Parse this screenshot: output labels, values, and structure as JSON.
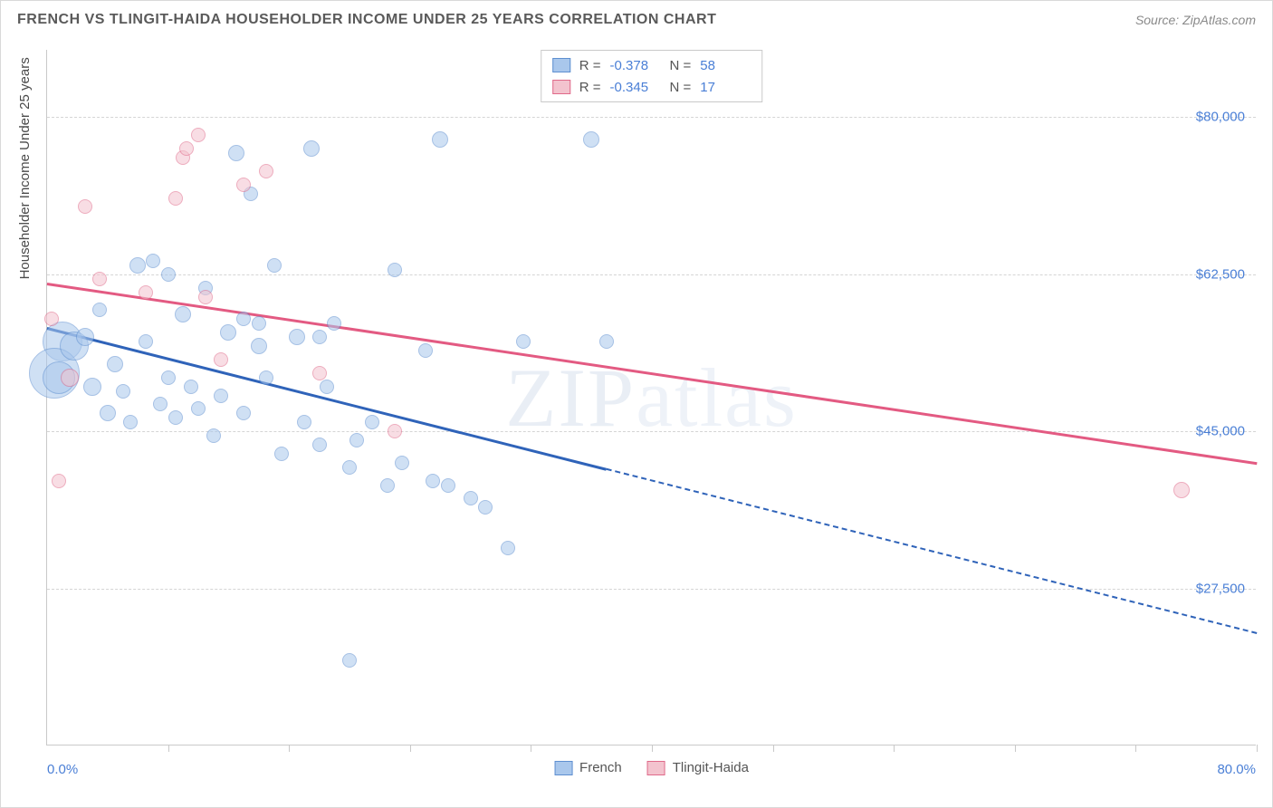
{
  "title": "FRENCH VS TLINGIT-HAIDA HOUSEHOLDER INCOME UNDER 25 YEARS CORRELATION CHART",
  "source": "Source: ZipAtlas.com",
  "ylabel": "Householder Income Under 25 years",
  "watermark": "ZIPatlas",
  "chart": {
    "type": "scatter",
    "background_color": "#ffffff",
    "grid_color": "#d5d5d5",
    "axis_color": "#c9c9c9",
    "text_color": "#4a4a4a",
    "value_color": "#4a7fd6",
    "title_fontsize": 16,
    "label_fontsize": 15,
    "xlim": [
      0,
      80
    ],
    "ylim": [
      10000,
      87500
    ],
    "yticks": [
      27500,
      45000,
      62500,
      80000
    ],
    "ytick_labels": [
      "$27,500",
      "$45,000",
      "$62,500",
      "$80,000"
    ],
    "xaxis_min_label": "0.0%",
    "xaxis_max_label": "80.0%",
    "xtick_positions": [
      8,
      16,
      24,
      32,
      40,
      48,
      56,
      64,
      72,
      80
    ],
    "series": [
      {
        "name": "French",
        "fill": "#a9c7ec",
        "stroke": "#5e8fd0",
        "fill_opacity": 0.55,
        "R": "-0.378",
        "N": "58",
        "trend": {
          "color": "#2f63b9",
          "x1": 0,
          "y1": 56500,
          "x2": 80,
          "y2": 22500,
          "solid_until_x": 37
        },
        "points": [
          {
            "x": 1.0,
            "y": 55000,
            "r": 22
          },
          {
            "x": 0.5,
            "y": 51500,
            "r": 28
          },
          {
            "x": 0.8,
            "y": 51000,
            "r": 18
          },
          {
            "x": 1.8,
            "y": 54500,
            "r": 16
          },
          {
            "x": 2.5,
            "y": 55500,
            "r": 10
          },
          {
            "x": 3.0,
            "y": 50000,
            "r": 10
          },
          {
            "x": 3.5,
            "y": 58500,
            "r": 8
          },
          {
            "x": 4.0,
            "y": 47000,
            "r": 9
          },
          {
            "x": 4.5,
            "y": 52500,
            "r": 9
          },
          {
            "x": 5.0,
            "y": 49500,
            "r": 8
          },
          {
            "x": 5.5,
            "y": 46000,
            "r": 8
          },
          {
            "x": 6.0,
            "y": 63500,
            "r": 9
          },
          {
            "x": 6.5,
            "y": 55000,
            "r": 8
          },
          {
            "x": 7.0,
            "y": 64000,
            "r": 8
          },
          {
            "x": 7.5,
            "y": 48000,
            "r": 8
          },
          {
            "x": 8.0,
            "y": 51000,
            "r": 8
          },
          {
            "x": 8.0,
            "y": 62500,
            "r": 8
          },
          {
            "x": 8.5,
            "y": 46500,
            "r": 8
          },
          {
            "x": 9.0,
            "y": 58000,
            "r": 9
          },
          {
            "x": 9.5,
            "y": 50000,
            "r": 8
          },
          {
            "x": 10.0,
            "y": 47500,
            "r": 8
          },
          {
            "x": 10.5,
            "y": 61000,
            "r": 8
          },
          {
            "x": 11.0,
            "y": 44500,
            "r": 8
          },
          {
            "x": 11.5,
            "y": 49000,
            "r": 8
          },
          {
            "x": 12.0,
            "y": 56000,
            "r": 9
          },
          {
            "x": 12.5,
            "y": 76000,
            "r": 9
          },
          {
            "x": 13.0,
            "y": 47000,
            "r": 8
          },
          {
            "x": 13.0,
            "y": 57500,
            "r": 8
          },
          {
            "x": 13.5,
            "y": 71500,
            "r": 8
          },
          {
            "x": 14.0,
            "y": 54500,
            "r": 9
          },
          {
            "x": 14.0,
            "y": 57000,
            "r": 8
          },
          {
            "x": 14.5,
            "y": 51000,
            "r": 8
          },
          {
            "x": 15.0,
            "y": 63500,
            "r": 8
          },
          {
            "x": 15.5,
            "y": 42500,
            "r": 8
          },
          {
            "x": 16.5,
            "y": 55500,
            "r": 9
          },
          {
            "x": 17.0,
            "y": 46000,
            "r": 8
          },
          {
            "x": 17.5,
            "y": 76500,
            "r": 9
          },
          {
            "x": 18.0,
            "y": 43500,
            "r": 8
          },
          {
            "x": 18.0,
            "y": 55500,
            "r": 8
          },
          {
            "x": 18.5,
            "y": 50000,
            "r": 8
          },
          {
            "x": 19.0,
            "y": 57000,
            "r": 8
          },
          {
            "x": 20.0,
            "y": 19500,
            "r": 8
          },
          {
            "x": 20.0,
            "y": 41000,
            "r": 8
          },
          {
            "x": 20.5,
            "y": 44000,
            "r": 8
          },
          {
            "x": 21.5,
            "y": 46000,
            "r": 8
          },
          {
            "x": 22.5,
            "y": 39000,
            "r": 8
          },
          {
            "x": 23.0,
            "y": 63000,
            "r": 8
          },
          {
            "x": 23.5,
            "y": 41500,
            "r": 8
          },
          {
            "x": 25.0,
            "y": 54000,
            "r": 8
          },
          {
            "x": 25.5,
            "y": 39500,
            "r": 8
          },
          {
            "x": 26.0,
            "y": 77500,
            "r": 9
          },
          {
            "x": 26.5,
            "y": 39000,
            "r": 8
          },
          {
            "x": 28.0,
            "y": 37500,
            "r": 8
          },
          {
            "x": 29.0,
            "y": 36500,
            "r": 8
          },
          {
            "x": 30.5,
            "y": 32000,
            "r": 8
          },
          {
            "x": 31.5,
            "y": 55000,
            "r": 8
          },
          {
            "x": 36.0,
            "y": 77500,
            "r": 9
          },
          {
            "x": 37.0,
            "y": 55000,
            "r": 8
          }
        ]
      },
      {
        "name": "Tlingit-Haida",
        "fill": "#f3c3ce",
        "stroke": "#e06a8a",
        "fill_opacity": 0.55,
        "R": "-0.345",
        "N": "17",
        "trend": {
          "color": "#e35a82",
          "x1": 0,
          "y1": 61500,
          "x2": 80,
          "y2": 41500,
          "solid_until_x": 80
        },
        "points": [
          {
            "x": 0.3,
            "y": 57500,
            "r": 8
          },
          {
            "x": 0.8,
            "y": 39500,
            "r": 8
          },
          {
            "x": 1.5,
            "y": 51000,
            "r": 10
          },
          {
            "x": 2.5,
            "y": 70000,
            "r": 8
          },
          {
            "x": 3.5,
            "y": 62000,
            "r": 8
          },
          {
            "x": 6.5,
            "y": 60500,
            "r": 8
          },
          {
            "x": 8.5,
            "y": 71000,
            "r": 8
          },
          {
            "x": 9.0,
            "y": 75500,
            "r": 8
          },
          {
            "x": 9.2,
            "y": 76500,
            "r": 8
          },
          {
            "x": 10.0,
            "y": 78000,
            "r": 8
          },
          {
            "x": 10.5,
            "y": 60000,
            "r": 8
          },
          {
            "x": 11.5,
            "y": 53000,
            "r": 8
          },
          {
            "x": 13.0,
            "y": 72500,
            "r": 8
          },
          {
            "x": 14.5,
            "y": 74000,
            "r": 8
          },
          {
            "x": 18.0,
            "y": 51500,
            "r": 8
          },
          {
            "x": 23.0,
            "y": 45000,
            "r": 8
          },
          {
            "x": 75.0,
            "y": 38500,
            "r": 9
          }
        ]
      }
    ],
    "legend_bottom": [
      {
        "label": "French",
        "fill": "#a9c7ec",
        "stroke": "#5e8fd0"
      },
      {
        "label": "Tlingit-Haida",
        "fill": "#f3c3ce",
        "stroke": "#e06a8a"
      }
    ]
  }
}
